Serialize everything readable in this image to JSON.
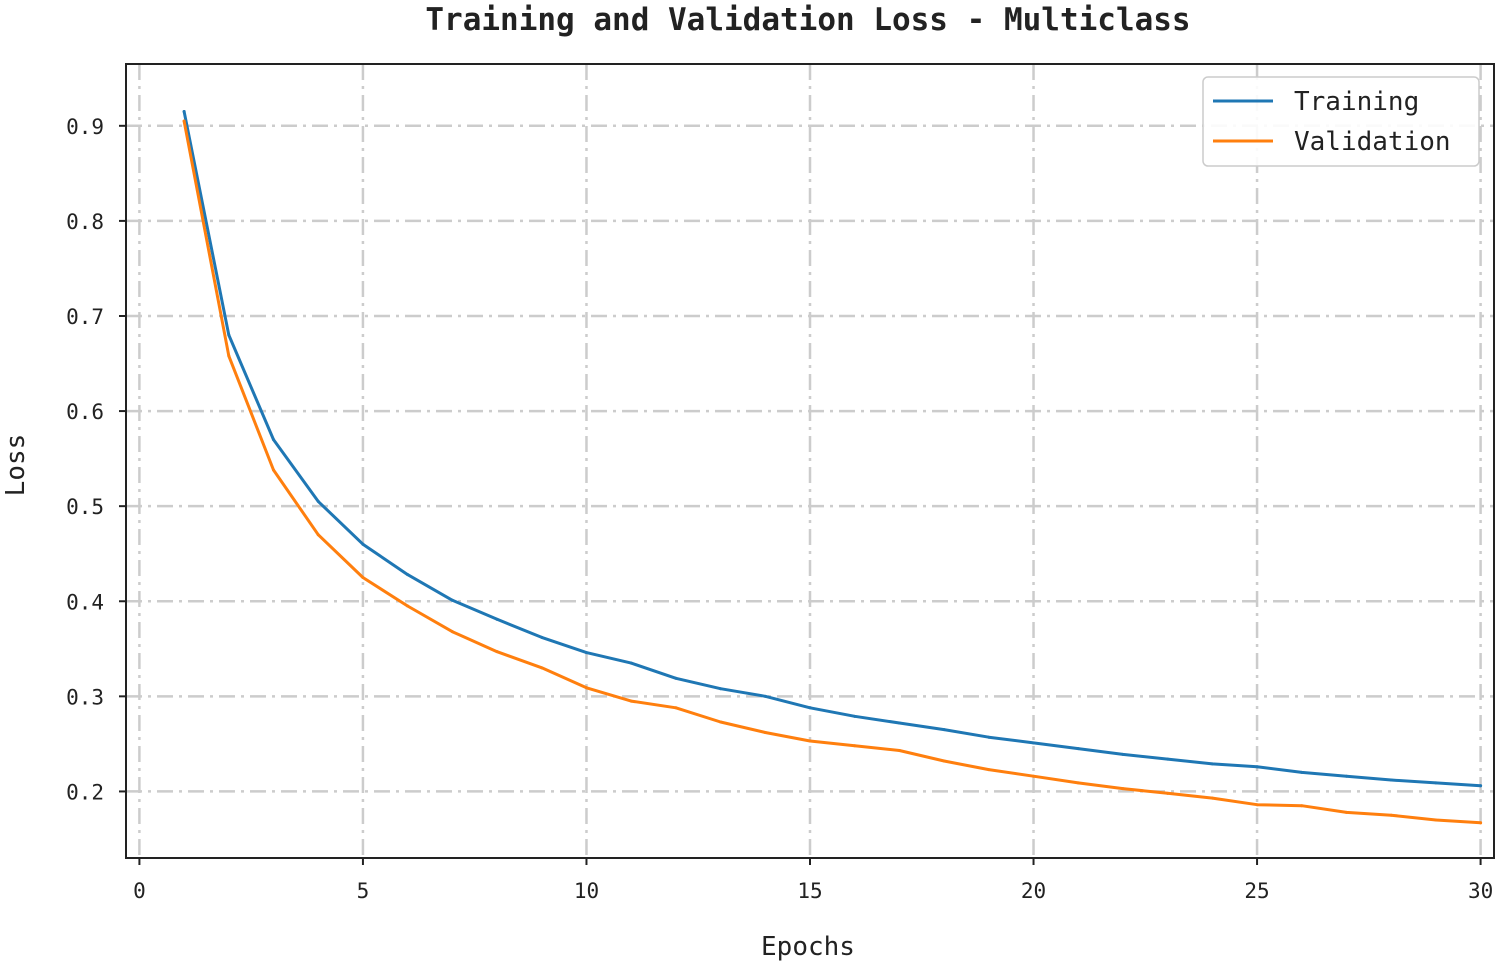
{
  "chart_data": {
    "type": "line",
    "title": "Training and Validation Loss - Multiclass",
    "xlabel": "Epochs",
    "ylabel": "Loss",
    "xlim": [
      -0.3,
      30.3
    ],
    "ylim": [
      0.13,
      0.965
    ],
    "xticks": [
      0,
      5,
      10,
      15,
      20,
      25,
      30
    ],
    "yticks": [
      0.2,
      0.3,
      0.4,
      0.5,
      0.6,
      0.7,
      0.8,
      0.9
    ],
    "grid": true,
    "legend_position": "top-right",
    "x": [
      1,
      2,
      3,
      4,
      5,
      6,
      7,
      8,
      9,
      10,
      11,
      12,
      13,
      14,
      15,
      16,
      17,
      18,
      19,
      20,
      21,
      22,
      23,
      24,
      25,
      26,
      27,
      28,
      29,
      30
    ],
    "series": [
      {
        "name": "Training",
        "color": "#1f77b4",
        "values": [
          0.915,
          0.68,
          0.57,
          0.505,
          0.46,
          0.428,
          0.401,
          0.381,
          0.362,
          0.346,
          0.335,
          0.319,
          0.308,
          0.3,
          0.288,
          0.279,
          0.272,
          0.265,
          0.257,
          0.251,
          0.245,
          0.239,
          0.234,
          0.229,
          0.226,
          0.22,
          0.216,
          0.212,
          0.209,
          0.206
        ]
      },
      {
        "name": "Validation",
        "color": "#ff7f0e",
        "values": [
          0.905,
          0.658,
          0.538,
          0.47,
          0.425,
          0.395,
          0.368,
          0.347,
          0.33,
          0.309,
          0.295,
          0.288,
          0.273,
          0.262,
          0.253,
          0.248,
          0.243,
          0.232,
          0.223,
          0.216,
          0.209,
          0.203,
          0.198,
          0.193,
          0.186,
          0.185,
          0.178,
          0.175,
          0.17,
          0.167
        ]
      }
    ]
  }
}
